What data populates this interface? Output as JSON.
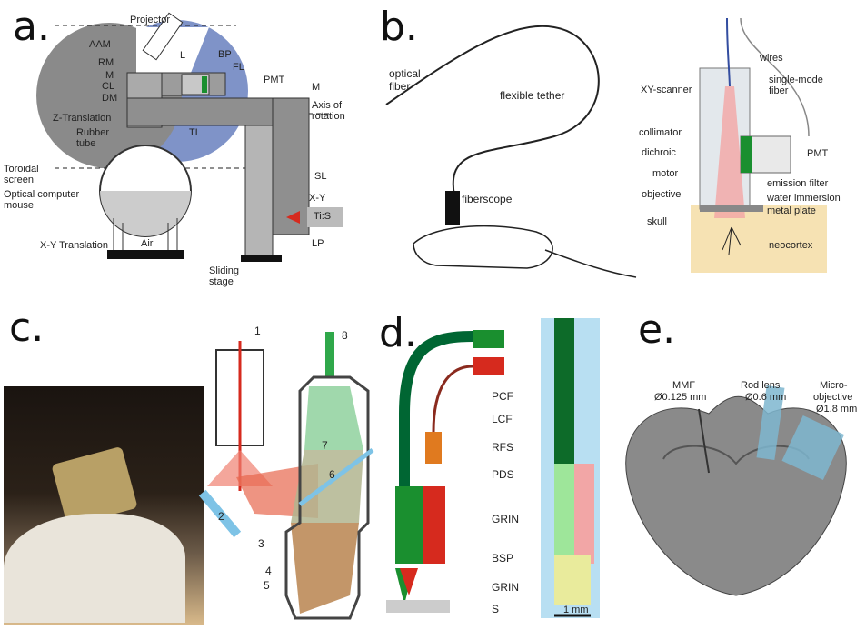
{
  "panels": {
    "a": {
      "label": "a.",
      "callouts": [
        "Projector",
        "AAM",
        "RM",
        "M",
        "CL",
        "DM",
        "Z-Translation",
        "Rubber tube",
        "Toroidal screen",
        "Optical computer mouse",
        "X-Y Translation",
        "Air",
        "L",
        "BP",
        "FL",
        "PMT",
        "M",
        "Axis of rotation",
        "TL",
        "SL",
        "X-Y",
        "Ti:S",
        "LP",
        "Sliding stage"
      ]
    },
    "b": {
      "label": "b.",
      "callouts": [
        "optical fiber",
        "flexible tether",
        "fiberscope",
        "XY-scanner",
        "wires",
        "single-mode fiber",
        "collimator",
        "dichroic",
        "PMT",
        "motor",
        "emission filter",
        "objective",
        "water immersion",
        "metal plate",
        "skull",
        "neocortex"
      ]
    },
    "c": {
      "label": "c.",
      "numbers": [
        "1",
        "2",
        "3",
        "4",
        "5",
        "6",
        "7",
        "8"
      ]
    },
    "d": {
      "label": "d.",
      "callouts": [
        "PCF",
        "LCF",
        "RFS",
        "PDS",
        "GRIN",
        "BSP",
        "GRIN",
        "S"
      ],
      "scale": "1 mm"
    },
    "e": {
      "label": "e.",
      "callouts": [
        "MMF",
        "Ø0.125 mm",
        "Rod lens",
        "Ø0.6 mm",
        "Micro-",
        "objective",
        "Ø1.8 mm"
      ]
    }
  },
  "colors": {
    "blue": "#7f93c8",
    "gray": "#8a8a8a",
    "green": "#1a8f2f",
    "red": "#d62a1e",
    "orange": "#e07a1f",
    "tan": "#f6e2b3",
    "lightblue": "#b8dff2"
  }
}
